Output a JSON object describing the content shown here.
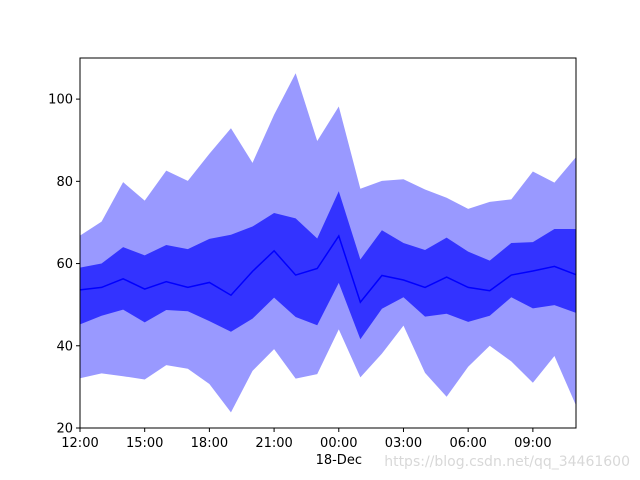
{
  "chart_data": {
    "type": "area",
    "x": [
      "12:00",
      "13:00",
      "14:00",
      "15:00",
      "16:00",
      "17:00",
      "18:00",
      "19:00",
      "20:00",
      "21:00",
      "22:00",
      "23:00",
      "00:00",
      "01:00",
      "02:00",
      "03:00",
      "04:00",
      "05:00",
      "06:00",
      "07:00",
      "08:00",
      "09:00",
      "10:00",
      "11:00"
    ],
    "series": [
      {
        "role": "outer_upper",
        "color": "#9999ff",
        "values": [
          66.8,
          70.2,
          79.8,
          75.3,
          82.6,
          80.1,
          86.7,
          92.9,
          84.5,
          96.2,
          106.3,
          89.8,
          98.2,
          78.2,
          80.1,
          80.5,
          78.0,
          76.0,
          73.3,
          75.0,
          75.6,
          82.4,
          79.7,
          85.9
        ]
      },
      {
        "role": "inner_upper",
        "color": "#3333ff",
        "values": [
          59.0,
          60.0,
          64.0,
          62.0,
          64.5,
          63.5,
          66.0,
          67.0,
          69.0,
          72.3,
          71.0,
          66.1,
          77.6,
          61.0,
          68.1,
          65.0,
          63.3,
          66.3,
          62.9,
          60.7,
          65.0,
          65.2,
          68.4,
          68.4
        ]
      },
      {
        "role": "mean",
        "color": "#0000ff",
        "values": [
          53.6,
          54.2,
          56.3,
          53.8,
          55.6,
          54.2,
          55.4,
          52.3,
          58.1,
          63.1,
          57.2,
          58.8,
          66.7,
          50.6,
          57.1,
          56.0,
          54.2,
          56.7,
          54.2,
          53.4,
          57.2,
          58.2,
          59.3,
          57.3
        ]
      },
      {
        "role": "inner_lower",
        "color": "#3333ff",
        "values": [
          45.2,
          47.3,
          48.8,
          45.7,
          48.7,
          48.4,
          46.0,
          43.4,
          46.6,
          51.7,
          47.0,
          45.0,
          55.3,
          41.6,
          49.0,
          51.8,
          47.1,
          47.8,
          45.8,
          47.3,
          51.8,
          49.1,
          49.9,
          48.0
        ]
      },
      {
        "role": "outer_lower",
        "color": "#9999ff",
        "values": [
          32.1,
          33.3,
          32.6,
          31.8,
          35.3,
          34.4,
          30.7,
          23.8,
          33.9,
          39.2,
          32.0,
          33.1,
          44.0,
          32.3,
          38.1,
          44.9,
          33.4,
          27.6,
          34.9,
          40.0,
          36.2,
          31.0,
          37.5,
          25.5
        ]
      }
    ],
    "ylim": [
      20,
      110
    ],
    "yticks": [
      "20",
      "40",
      "60",
      "80",
      "100"
    ],
    "xticks": [
      "12:00",
      "15:00",
      "18:00",
      "21:00",
      "00:00",
      "03:00",
      "06:00",
      "09:00"
    ],
    "x_date_label": "18-Dec",
    "grid": false
  },
  "watermark": "https://blog.csdn.net/qq_34461600"
}
